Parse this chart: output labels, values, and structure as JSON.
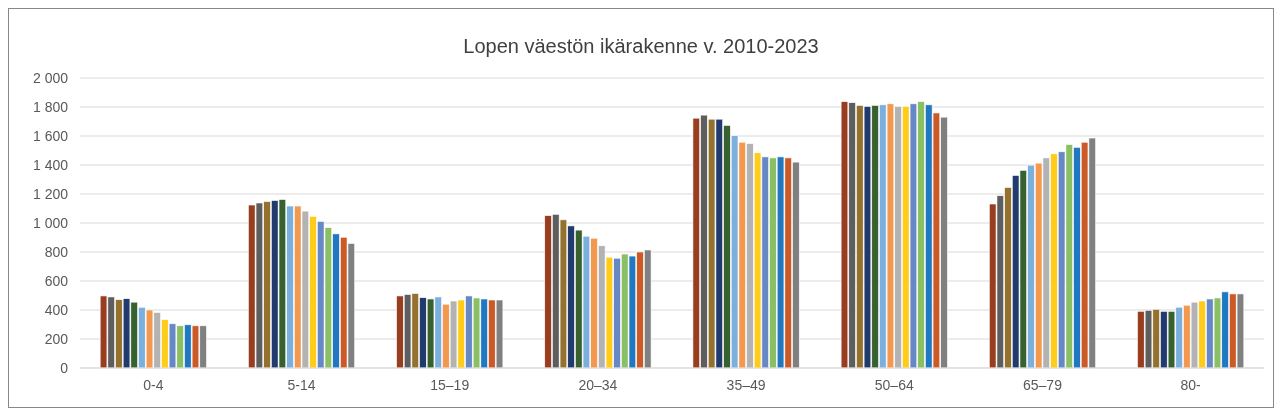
{
  "chart_data": {
    "type": "bar",
    "title": "Lopen väestön ikärakenne v. 2010-2023",
    "categories": [
      "0-4",
      "5-14",
      "15–19",
      "20–34",
      "35–49",
      "50–64",
      "65–79",
      "80-"
    ],
    "series": [
      {
        "color": "#993d1f",
        "values": [
          497,
          1124,
          497,
          1051,
          1723,
          1837,
          1131,
          391
        ]
      },
      {
        "color": "#5e5e5e",
        "values": [
          490,
          1138,
          507,
          1060,
          1744,
          1830,
          1188,
          398
        ]
      },
      {
        "color": "#94722e",
        "values": [
          471,
          1148,
          514,
          1022,
          1716,
          1811,
          1245,
          405
        ]
      },
      {
        "color": "#213b6e",
        "values": [
          478,
          1155,
          485,
          980,
          1716,
          1804,
          1328,
          391
        ]
      },
      {
        "color": "#386130",
        "values": [
          454,
          1162,
          476,
          951,
          1673,
          1811,
          1363,
          391
        ]
      },
      {
        "color": "#7aafde",
        "values": [
          419,
          1117,
          490,
          909,
          1602,
          1815,
          1399,
          419
        ]
      },
      {
        "color": "#f2994f",
        "values": [
          400,
          1117,
          440,
          895,
          1557,
          1822,
          1413,
          433
        ]
      },
      {
        "color": "#b3b3b3",
        "values": [
          383,
          1082,
          462,
          843,
          1548,
          1804,
          1449,
          454
        ]
      },
      {
        "color": "#ffcc19",
        "values": [
          334,
          1046,
          469,
          764,
          1484,
          1804,
          1477,
          462
        ]
      },
      {
        "color": "#6688c7",
        "values": [
          305,
          1011,
          497,
          757,
          1456,
          1822,
          1491,
          476
        ]
      },
      {
        "color": "#8abf63",
        "values": [
          291,
          968,
          483,
          786,
          1449,
          1837,
          1541,
          483
        ]
      },
      {
        "color": "#1f78c1",
        "values": [
          298,
          925,
          476,
          772,
          1456,
          1815,
          1522,
          525
        ]
      },
      {
        "color": "#cc5a27",
        "values": [
          291,
          902,
          469,
          800,
          1449,
          1759,
          1557,
          511
        ]
      },
      {
        "color": "#808080",
        "values": [
          291,
          859,
          469,
          814,
          1420,
          1730,
          1586,
          511
        ]
      }
    ],
    "ylim": [
      0,
      2000
    ],
    "yticks": [
      {
        "value": 0,
        "label": "0"
      },
      {
        "value": 200,
        "label": "200"
      },
      {
        "value": 400,
        "label": "400"
      },
      {
        "value": 600,
        "label": "600"
      },
      {
        "value": 800,
        "label": "800"
      },
      {
        "value": 1000,
        "label": "1 000"
      },
      {
        "value": 1200,
        "label": "1 200"
      },
      {
        "value": 1400,
        "label": "1 400"
      },
      {
        "value": 1600,
        "label": "1 600"
      },
      {
        "value": 1800,
        "label": "1 800"
      },
      {
        "value": 2000,
        "label": "2 000"
      }
    ],
    "grid": "y"
  }
}
